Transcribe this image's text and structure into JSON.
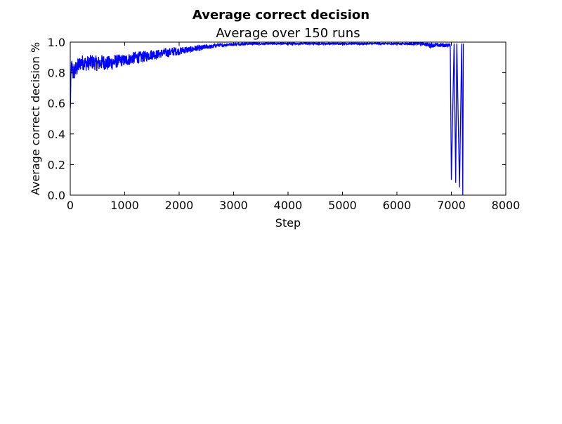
{
  "chart_data": {
    "type": "line",
    "title": "Average correct decision",
    "subtitle": "Average over 150 runs",
    "xlabel": "Step",
    "ylabel": "Average correct decision %",
    "xlim": [
      0,
      8000
    ],
    "ylim": [
      0.0,
      1.0
    ],
    "xticks": [
      0,
      1000,
      2000,
      3000,
      4000,
      5000,
      6000,
      7000,
      8000
    ],
    "yticks": [
      0.0,
      0.2,
      0.4,
      0.6,
      0.8,
      1.0
    ],
    "xtick_labels": [
      "0",
      "1000",
      "2000",
      "3000",
      "4000",
      "5000",
      "6000",
      "7000",
      "8000"
    ],
    "ytick_labels": [
      "0.0",
      "0.2",
      "0.4",
      "0.6",
      "0.8",
      "1.0"
    ],
    "grid": false,
    "line_color": "#0000ff",
    "series": [
      {
        "x": [
          0,
          20,
          50,
          100,
          200,
          300,
          400,
          500,
          600,
          700,
          800,
          900,
          1000,
          1100,
          1200,
          1300,
          1400,
          1500,
          1600,
          1700,
          1800,
          1900,
          2000,
          2100,
          2200,
          2300,
          2400,
          2500,
          2600,
          2700,
          2800,
          2900,
          3000,
          3200,
          3400,
          3600,
          3800,
          4000,
          4500,
          5000,
          5500,
          6000,
          6200,
          6400,
          6500,
          6600,
          6700,
          6800,
          6900,
          6980,
          7000,
          7050,
          7080,
          7100,
          7150,
          7190,
          7210,
          7220
        ],
        "y": [
          0.55,
          0.85,
          0.8,
          0.82,
          0.87,
          0.86,
          0.87,
          0.86,
          0.87,
          0.86,
          0.87,
          0.88,
          0.88,
          0.89,
          0.9,
          0.9,
          0.91,
          0.92,
          0.92,
          0.93,
          0.93,
          0.94,
          0.94,
          0.95,
          0.95,
          0.96,
          0.96,
          0.97,
          0.97,
          0.98,
          0.98,
          0.985,
          0.985,
          0.99,
          0.99,
          0.99,
          0.99,
          0.99,
          0.99,
          0.99,
          0.99,
          0.99,
          0.99,
          0.99,
          0.99,
          0.98,
          0.98,
          0.98,
          0.98,
          0.98,
          0.1,
          0.99,
          0.08,
          0.99,
          0.05,
          0.99,
          0.0,
          0.99
        ],
        "noise": [
          0.05,
          0.05,
          0.06,
          0.06,
          0.05,
          0.05,
          0.05,
          0.05,
          0.05,
          0.05,
          0.05,
          0.04,
          0.04,
          0.04,
          0.04,
          0.04,
          0.035,
          0.035,
          0.03,
          0.03,
          0.03,
          0.03,
          0.025,
          0.025,
          0.02,
          0.02,
          0.02,
          0.015,
          0.015,
          0.012,
          0.01,
          0.01,
          0.01,
          0.008,
          0.008,
          0.007,
          0.007,
          0.006,
          0.006,
          0.006,
          0.006,
          0.006,
          0.008,
          0.01,
          0.012,
          0.015,
          0.015,
          0.015,
          0.012,
          0.01,
          0.0,
          0.0,
          0.0,
          0.0,
          0.0,
          0.0,
          0.0,
          0.0
        ]
      }
    ]
  }
}
